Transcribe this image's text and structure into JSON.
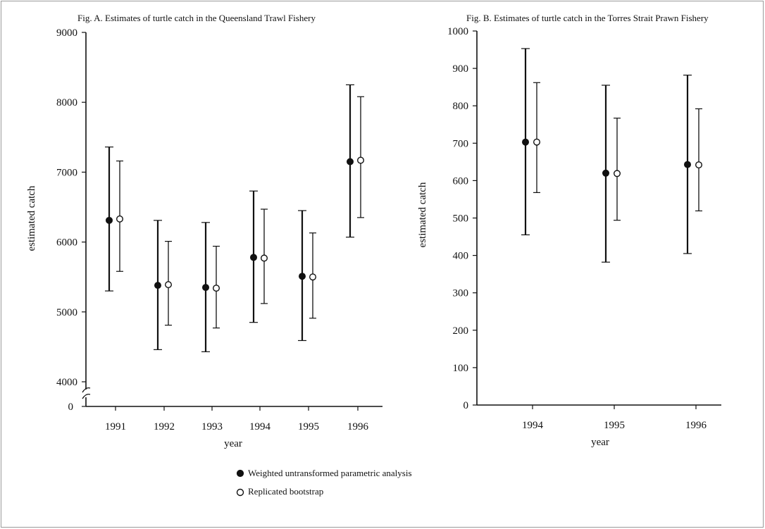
{
  "chart_data": [
    {
      "id": "A",
      "type": "scatter",
      "title": "Fig. A. Estimates of turtle catch in the Queensland Trawl Fishery",
      "xlabel": "year",
      "ylabel": "estimated catch",
      "categories": [
        "1991",
        "1992",
        "1993",
        "1994",
        "1995",
        "1996"
      ],
      "yticks": [
        4000,
        5000,
        6000,
        7000,
        8000,
        9000
      ],
      "extra_ytick": "0",
      "ylim": [
        4000,
        9000
      ],
      "axis_break": true,
      "series": [
        {
          "name": "Weighted untransformed parametric analysis",
          "marker": "filled-circle",
          "values": [
            6310,
            5380,
            5350,
            5780,
            5510,
            7150
          ],
          "lower": [
            5300,
            4460,
            4430,
            4850,
            4590,
            6070
          ],
          "upper": [
            7360,
            6310,
            6280,
            6730,
            6450,
            8250
          ]
        },
        {
          "name": "Replicated bootstrap",
          "marker": "open-circle",
          "values": [
            6330,
            5390,
            5340,
            5770,
            5500,
            7170
          ],
          "lower": [
            5580,
            4810,
            4770,
            5120,
            4910,
            6350
          ],
          "upper": [
            7160,
            6010,
            5940,
            6470,
            6130,
            8080
          ]
        }
      ]
    },
    {
      "id": "B",
      "type": "scatter",
      "title": "Fig. B. Estimates of turtle catch in the Torres Strait Prawn Fishery",
      "xlabel": "year",
      "ylabel": "estimated catch",
      "categories": [
        "1994",
        "1995",
        "1996"
      ],
      "yticks": [
        0,
        100,
        200,
        300,
        400,
        500,
        600,
        700,
        800,
        900,
        1000
      ],
      "ylim": [
        0,
        1000
      ],
      "series": [
        {
          "name": "Weighted untransformed parametric analysis",
          "marker": "filled-circle",
          "values": [
            703,
            620,
            643
          ],
          "lower": [
            455,
            382,
            405
          ],
          "upper": [
            953,
            855,
            882
          ]
        },
        {
          "name": "Replicated bootstrap",
          "marker": "open-circle",
          "values": [
            703,
            619,
            642
          ],
          "lower": [
            568,
            494,
            519
          ],
          "upper": [
            862,
            767,
            792
          ]
        }
      ]
    }
  ],
  "legend": {
    "items": [
      {
        "label": "Weighted untransformed parametric analysis",
        "marker": "filled-circle"
      },
      {
        "label": "Replicated bootstrap",
        "marker": "open-circle"
      }
    ],
    "placement": "bottom-center"
  },
  "colors": {
    "ink": "#111111",
    "frame": "#9a9a9a",
    "background": "#ffffff"
  }
}
